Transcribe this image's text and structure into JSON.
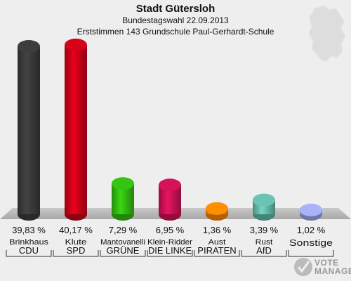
{
  "header": {
    "title": "Stadt Gütersloh",
    "subtitle": "Bundestagswahl 22.09.2013",
    "subtitle2": "Erststimmen 143 Grundschule Paul-Gerhardt-Schule"
  },
  "chart_data": {
    "type": "bar",
    "title": "Stadt Gütersloh",
    "categories": [
      "CDU",
      "SPD",
      "GRÜNE",
      "DIE LINKE",
      "PIRATEN",
      "AfD",
      "Sonstige"
    ],
    "candidates": [
      "Brinkhaus",
      "Klute",
      "Mantovanelli",
      "Klein-Ridder",
      "Aust",
      "Rust",
      ""
    ],
    "values": [
      39.83,
      40.17,
      7.29,
      6.95,
      1.36,
      3.39,
      1.02
    ],
    "value_labels": [
      "39,83 %",
      "40,17 %",
      "7,29 %",
      "6,95 %",
      "1,36 %",
      "3,39 %",
      "1,02 %"
    ],
    "colors": [
      "#3a3a3a",
      "#cc0018",
      "#33bb11",
      "#cc1155",
      "#ff8800",
      "#66bbaa",
      "#a0aaee"
    ],
    "ylim": [
      0,
      40.17
    ],
    "grid": false,
    "legend": "none"
  },
  "logo": {
    "text_line1": "VOTE",
    "text_line2": "MANAGER"
  }
}
